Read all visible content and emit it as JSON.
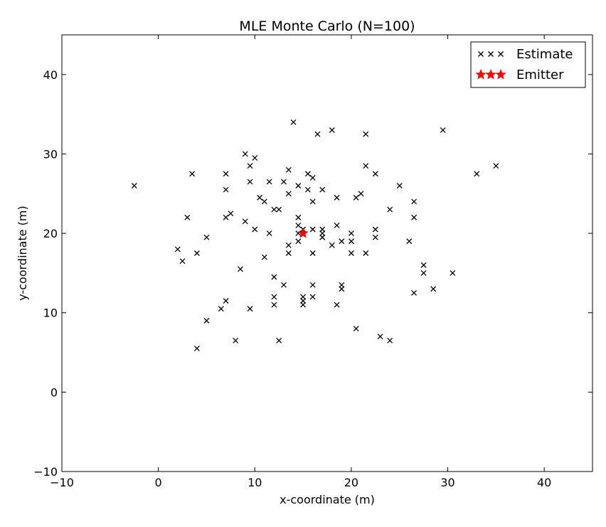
{
  "chart_data": {
    "type": "scatter",
    "title": "MLE Monte Carlo (N=100)",
    "xlabel": "x-coordinate (m)",
    "ylabel": "y-coordinate (m)",
    "xlim": [
      -10,
      45
    ],
    "ylim": [
      -10,
      45
    ],
    "xticks": [
      -10,
      0,
      10,
      20,
      30,
      40
    ],
    "yticks": [
      -10,
      0,
      10,
      20,
      30,
      40
    ],
    "xtick_labels": [
      "−10",
      "0",
      "10",
      "20",
      "30",
      "40"
    ],
    "ytick_labels": [
      "−10",
      "0",
      "10",
      "20",
      "30",
      "40"
    ],
    "grid": false,
    "legend_position": "top-right",
    "series": [
      {
        "name": "Estimate",
        "marker": "x",
        "color": "#000000",
        "points": [
          [
            -2.5,
            26
          ],
          [
            3.5,
            27.5
          ],
          [
            3,
            22
          ],
          [
            2,
            18
          ],
          [
            4,
            17.5
          ],
          [
            2.5,
            16.5
          ],
          [
            5,
            19.5
          ],
          [
            7,
            27.5
          ],
          [
            7,
            25.5
          ],
          [
            7,
            22
          ],
          [
            7.5,
            22.5
          ],
          [
            9,
            30
          ],
          [
            9.5,
            28.5
          ],
          [
            9.5,
            26.5
          ],
          [
            9,
            21.5
          ],
          [
            10,
            20.5
          ],
          [
            10,
            29.5
          ],
          [
            10.5,
            24.5
          ],
          [
            11,
            24
          ],
          [
            11.5,
            26.5
          ],
          [
            11.5,
            20
          ],
          [
            11,
            17
          ],
          [
            12,
            23
          ],
          [
            12.5,
            23
          ],
          [
            13,
            26.5
          ],
          [
            13.5,
            28
          ],
          [
            13.5,
            25
          ],
          [
            14,
            34
          ],
          [
            14.5,
            26
          ],
          [
            14.5,
            22
          ],
          [
            14.5,
            21
          ],
          [
            14.5,
            20
          ],
          [
            14.5,
            19
          ],
          [
            13.5,
            18.5
          ],
          [
            13.5,
            17.5
          ],
          [
            15.5,
            27.5
          ],
          [
            15.5,
            25.5
          ],
          [
            16,
            27
          ],
          [
            16,
            24
          ],
          [
            16,
            20.5
          ],
          [
            16,
            17.5
          ],
          [
            16.5,
            32.5
          ],
          [
            17,
            25.5
          ],
          [
            17,
            20.5
          ],
          [
            17,
            20
          ],
          [
            17,
            19.5
          ],
          [
            18,
            33
          ],
          [
            18.5,
            24.5
          ],
          [
            18.5,
            21
          ],
          [
            18,
            18.5
          ],
          [
            19,
            19
          ],
          [
            20,
            20
          ],
          [
            20,
            19
          ],
          [
            20,
            17.5
          ],
          [
            20.5,
            24.5
          ],
          [
            21,
            25
          ],
          [
            21.5,
            32.5
          ],
          [
            21.5,
            28.5
          ],
          [
            22.5,
            27.5
          ],
          [
            22.5,
            20.5
          ],
          [
            22.5,
            19.5
          ],
          [
            21.5,
            17.5
          ],
          [
            24,
            23
          ],
          [
            25,
            26
          ],
          [
            26.5,
            24
          ],
          [
            26.5,
            22
          ],
          [
            26,
            19
          ],
          [
            27.5,
            16
          ],
          [
            27.5,
            15
          ],
          [
            26.5,
            12.5
          ],
          [
            28.5,
            13
          ],
          [
            29.5,
            33
          ],
          [
            30.5,
            15
          ],
          [
            33,
            27.5
          ],
          [
            35,
            28.5
          ],
          [
            8.5,
            15.5
          ],
          [
            12,
            14.5
          ],
          [
            12,
            12
          ],
          [
            12,
            11
          ],
          [
            13,
            13.5
          ],
          [
            15,
            12
          ],
          [
            15,
            11.5
          ],
          [
            15,
            11
          ],
          [
            16,
            13.5
          ],
          [
            16,
            12
          ],
          [
            18.5,
            11
          ],
          [
            19,
            13.5
          ],
          [
            19,
            13
          ],
          [
            7,
            11.5
          ],
          [
            6.5,
            10.5
          ],
          [
            9.5,
            10.5
          ],
          [
            5,
            9
          ],
          [
            4,
            5.5
          ],
          [
            8,
            6.5
          ],
          [
            12.5,
            6.5
          ],
          [
            20.5,
            8
          ],
          [
            23,
            7
          ],
          [
            24,
            6.5
          ],
          [
            15,
            20.5
          ],
          [
            17,
            19.5
          ]
        ]
      },
      {
        "name": "Emitter",
        "marker": "star",
        "color": "#ff0000",
        "points": [
          [
            15,
            20
          ]
        ]
      }
    ]
  }
}
